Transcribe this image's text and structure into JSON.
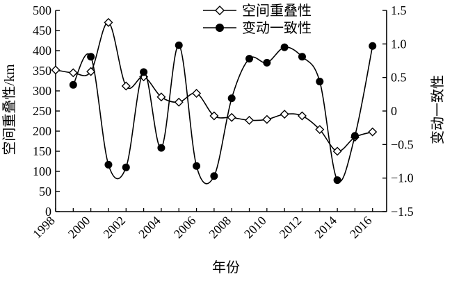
{
  "chart_data": {
    "type": "line",
    "title": "",
    "xlabel": "年份",
    "ylabel_left": "空间重叠性/km",
    "ylabel_right": "变动一致性",
    "xlim": [
      1998,
      2016.8
    ],
    "ylim_left": [
      0,
      500
    ],
    "ylim_right": [
      -1.5,
      1.5
    ],
    "x_ticks": [
      "1998",
      "2000",
      "2002",
      "2004",
      "2006",
      "2008",
      "2010",
      "2012",
      "2014",
      "2016"
    ],
    "y_ticks_left": [
      "0",
      "50",
      "100",
      "150",
      "200",
      "250",
      "300",
      "350",
      "400",
      "450",
      "500"
    ],
    "y_ticks_right": [
      "−1.5",
      "−1.0",
      "−0.5",
      "0",
      "0.5",
      "1.0",
      "1.5"
    ],
    "grid": false,
    "legend_position": "top-center",
    "series": [
      {
        "name": "空间重叠性",
        "axis": "left",
        "marker": "diamond-open",
        "x": [
          1998,
          1999,
          2000,
          2001,
          2002,
          2003,
          2004,
          2005,
          2006,
          2007,
          2008,
          2009,
          2010,
          2011,
          2012,
          2013,
          2014,
          2015,
          2016
        ],
        "values": [
          352,
          345,
          348,
          470,
          312,
          335,
          285,
          272,
          294,
          238,
          234,
          227,
          229,
          242,
          238,
          204,
          150,
          185,
          198
        ]
      },
      {
        "name": "变动一致性",
        "axis": "right",
        "marker": "circle-filled",
        "x": [
          1999,
          2000,
          2001,
          2002,
          2003,
          2004,
          2005,
          2006,
          2007,
          2008,
          2009,
          2010,
          2011,
          2012,
          2013,
          2014,
          2015,
          2016
        ],
        "values": [
          0.39,
          0.81,
          -0.8,
          -0.84,
          0.58,
          -0.55,
          0.98,
          -0.82,
          -0.97,
          0.19,
          0.78,
          0.72,
          0.95,
          0.81,
          0.44,
          -1.03,
          -0.37,
          0.97
        ]
      }
    ]
  }
}
